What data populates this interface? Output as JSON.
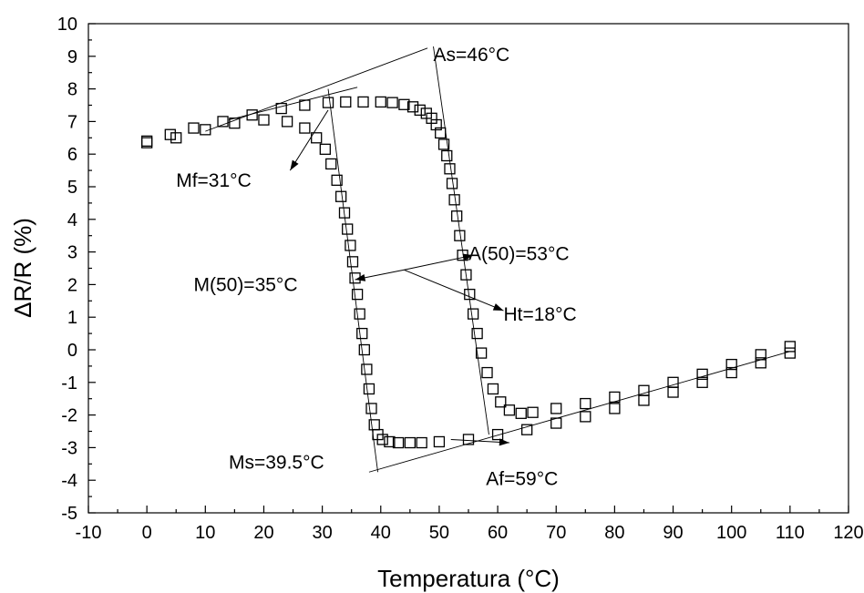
{
  "chart_data": {
    "type": "scatter",
    "xlabel": "Temperatura (°C)",
    "ylabel": "ΔR/R (%)",
    "xlim": [
      -10,
      120
    ],
    "ylim": [
      -5,
      10
    ],
    "xticks": [
      -10,
      0,
      10,
      20,
      30,
      40,
      50,
      60,
      70,
      80,
      90,
      100,
      110,
      120
    ],
    "yticks": [
      -5,
      -4,
      -3,
      -2,
      -1,
      0,
      1,
      2,
      3,
      4,
      5,
      6,
      7,
      8,
      9,
      10
    ],
    "grid": false,
    "marker": "open-square",
    "series": [
      {
        "x": [
          0,
          5,
          10,
          15,
          20,
          24,
          27,
          29,
          30.5,
          31.5,
          32.5,
          33.2,
          33.8,
          34.3,
          34.8,
          35.2,
          35.6,
          36,
          36.4,
          36.8,
          37.2,
          37.6,
          38,
          38.4,
          38.9,
          39.5,
          40.3,
          41.5,
          43,
          45,
          47,
          50,
          55,
          60,
          65,
          70,
          75,
          80,
          85,
          90,
          95,
          100,
          105,
          110
        ],
        "y": [
          6.35,
          6.5,
          6.75,
          6.95,
          7.05,
          7.0,
          6.8,
          6.5,
          6.15,
          5.7,
          5.2,
          4.7,
          4.2,
          3.7,
          3.2,
          2.7,
          2.2,
          1.7,
          1.1,
          0.5,
          0.0,
          -0.6,
          -1.2,
          -1.8,
          -2.3,
          -2.6,
          -2.75,
          -2.82,
          -2.85,
          -2.85,
          -2.85,
          -2.82,
          -2.75,
          -2.6,
          -2.45,
          -2.25,
          -2.05,
          -1.8,
          -1.55,
          -1.3,
          -1.0,
          -0.7,
          -0.4,
          -0.1
        ]
      },
      {
        "x": [
          110,
          105,
          100,
          95,
          90,
          85,
          80,
          75,
          70,
          66,
          64,
          62,
          60.5,
          59.2,
          58.2,
          57.2,
          56.5,
          55.8,
          55.2,
          54.6,
          54.0,
          53.5,
          53.0,
          52.6,
          52.2,
          51.8,
          51.3,
          50.8,
          50.2,
          49.5,
          48.7,
          47.8,
          46.7,
          45.5,
          44,
          42,
          40,
          37,
          34,
          31,
          27,
          23,
          18,
          13,
          8,
          4,
          0
        ],
        "y": [
          0.1,
          -0.15,
          -0.45,
          -0.75,
          -1.0,
          -1.25,
          -1.45,
          -1.65,
          -1.8,
          -1.92,
          -1.95,
          -1.85,
          -1.6,
          -1.2,
          -0.7,
          -0.1,
          0.5,
          1.1,
          1.7,
          2.3,
          2.9,
          3.5,
          4.1,
          4.6,
          5.1,
          5.55,
          5.95,
          6.3,
          6.65,
          6.9,
          7.1,
          7.25,
          7.35,
          7.45,
          7.52,
          7.58,
          7.6,
          7.6,
          7.6,
          7.58,
          7.5,
          7.4,
          7.2,
          7.0,
          6.8,
          6.6,
          6.4
        ]
      }
    ],
    "annotations": [
      {
        "text": "As=46°C",
        "x": 49,
        "y": 8.85
      },
      {
        "text": "Mf=31°C",
        "x": 5,
        "y": 5.0
      },
      {
        "text": "A(50)=53°C",
        "x": 55,
        "y": 2.75
      },
      {
        "text": "M(50)=35°C",
        "x": 8,
        "y": 1.8
      },
      {
        "text": "Ht=18°C",
        "x": 61,
        "y": 0.9
      },
      {
        "text": "Ms=39.5°C",
        "x": 14,
        "y": -3.65
      },
      {
        "text": "Af=59°C",
        "x": 58,
        "y": -4.15
      }
    ]
  }
}
